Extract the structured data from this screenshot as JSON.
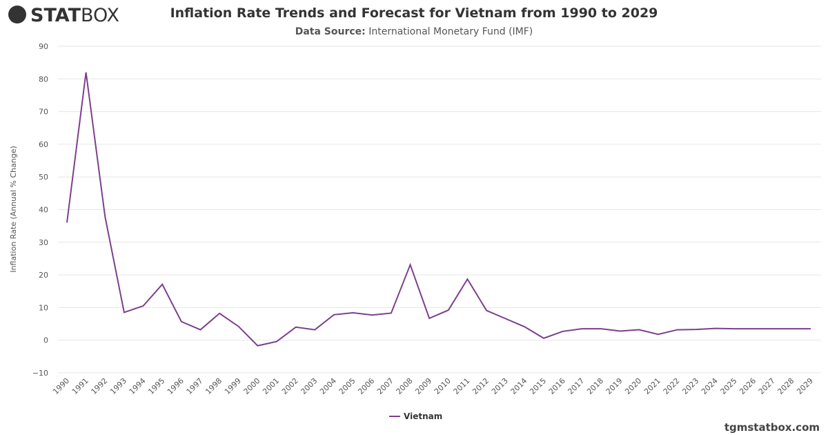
{
  "logo": {
    "bold": "STAT",
    "light": "BOX"
  },
  "footer": "tgmstatbox.com",
  "chart_data": {
    "type": "line",
    "title": "Inflation Rate Trends and Forecast for Vietnam from 1990 to 2029",
    "source_label": "Data Source:",
    "source": "International Monetary Fund (IMF)",
    "y_label": "Inflation Rate (Annual % Change)",
    "categories": [
      "1990",
      "1991",
      "1992",
      "1993",
      "1994",
      "1995",
      "1996",
      "1997",
      "1998",
      "1999",
      "2000",
      "2001",
      "2002",
      "2003",
      "2004",
      "2005",
      "2006",
      "2007",
      "2008",
      "2009",
      "2010",
      "2011",
      "2012",
      "2013",
      "2014",
      "2015",
      "2016",
      "2017",
      "2018",
      "2019",
      "2020",
      "2021",
      "2022",
      "2023",
      "2024",
      "2025",
      "2026",
      "2027",
      "2028",
      "2029"
    ],
    "series": [
      {
        "name": "Vietnam",
        "color": "#7b3f8c",
        "values": [
          36.0,
          82.0,
          37.8,
          8.5,
          10.5,
          17.1,
          5.7,
          3.2,
          8.2,
          4.2,
          -1.7,
          -0.4,
          4.0,
          3.2,
          7.8,
          8.4,
          7.7,
          8.3,
          23.1,
          6.7,
          9.2,
          18.7,
          9.1,
          6.6,
          4.1,
          0.6,
          2.7,
          3.5,
          3.5,
          2.8,
          3.2,
          1.8,
          3.2,
          3.3,
          3.6,
          3.5,
          3.5,
          3.5,
          3.5,
          3.5
        ]
      }
    ],
    "ylim": [
      -10,
      90
    ],
    "yticks": [
      {
        "value": -10,
        "label": "−10"
      },
      0,
      10,
      20,
      30,
      40,
      50,
      60,
      70,
      80,
      90
    ],
    "grid": true,
    "legend": "bottom"
  }
}
